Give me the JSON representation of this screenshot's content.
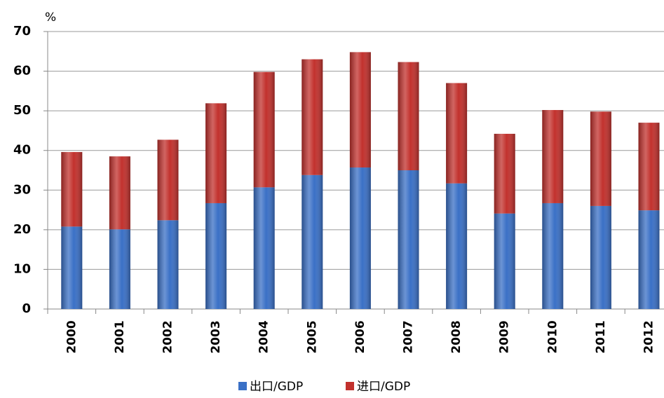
{
  "chart_data": {
    "type": "bar",
    "stacked": true,
    "y_unit": "%",
    "categories": [
      "2000",
      "2001",
      "2002",
      "2003",
      "2004",
      "2005",
      "2006",
      "2007",
      "2008",
      "2009",
      "2010",
      "2011",
      "2012"
    ],
    "series": [
      {
        "name": "出口/GDP",
        "color": "#3a70c6",
        "values": [
          20.8,
          20.1,
          22.4,
          26.7,
          30.7,
          33.8,
          35.7,
          35.0,
          31.7,
          24.1,
          26.7,
          26.0,
          24.9
        ]
      },
      {
        "name": "进口/GDP",
        "color": "#c2312d",
        "values": [
          18.8,
          18.4,
          20.3,
          25.2,
          29.1,
          29.2,
          29.1,
          27.3,
          25.3,
          20.1,
          23.5,
          23.8,
          22.1
        ]
      }
    ],
    "ylim": [
      0,
      70
    ],
    "yticks": [
      0,
      10,
      20,
      30,
      40,
      50,
      60,
      70
    ],
    "grid": true,
    "legend": "bottom"
  }
}
